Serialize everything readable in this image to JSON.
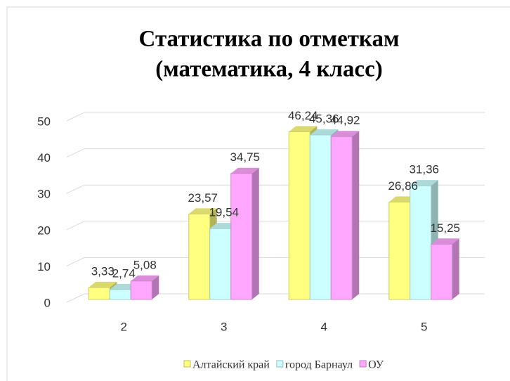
{
  "chart_data": {
    "type": "bar3d",
    "title": [
      "Статистика по отметкам",
      "(математика, 4 класс)"
    ],
    "categories": [
      "2",
      "3",
      "4",
      "5"
    ],
    "series": [
      {
        "name": "Алтайский край",
        "color": "#ffff80",
        "values": [
          3.33,
          23.57,
          46.24,
          26.86
        ],
        "value_labels": [
          "3,33",
          "23,57",
          "46,24",
          "26,86"
        ]
      },
      {
        "name": "город Барнаул",
        "color": "#ccffff",
        "values": [
          2.74,
          19.54,
          45.36,
          31.36
        ],
        "value_labels": [
          "2,74",
          "19,54",
          "45,36",
          "31,36"
        ]
      },
      {
        "name": "ОУ",
        "color": "#ffa6ff",
        "values": [
          5.08,
          34.75,
          44.92,
          15.25
        ],
        "value_labels": [
          "5,08",
          "34,75",
          "44,92",
          "15,25"
        ]
      }
    ],
    "ylim": [
      0,
      50
    ],
    "yticks": [
      0,
      10,
      20,
      30,
      40,
      50
    ],
    "grid": true,
    "legend": "bottom"
  }
}
